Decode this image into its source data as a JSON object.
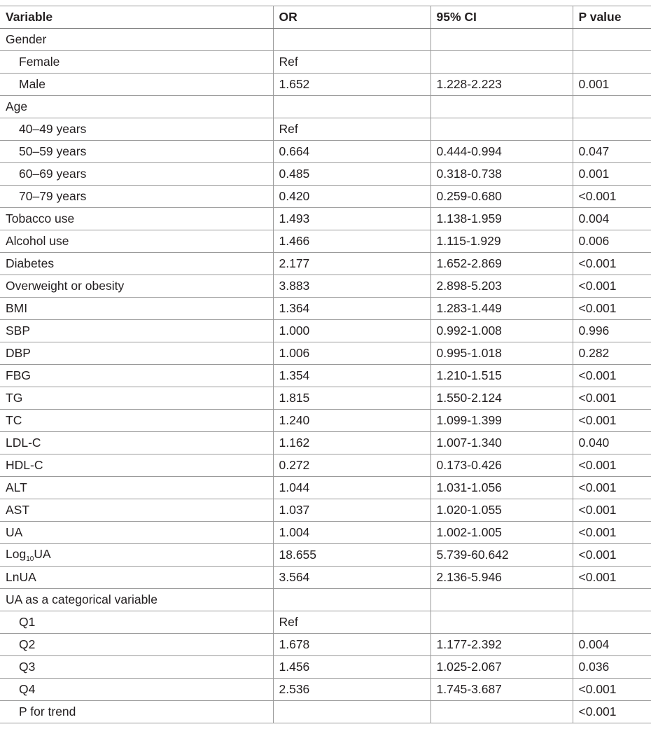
{
  "table": {
    "header": [
      "Variable",
      "OR",
      "95% CI",
      "P value"
    ],
    "rows": [
      {
        "level": 0,
        "cells": [
          "Gender",
          null,
          null,
          null
        ]
      },
      {
        "level": 1,
        "cells": [
          "Female",
          "Ref",
          null,
          null
        ]
      },
      {
        "level": 1,
        "cells": [
          "Male",
          "1.652",
          "1.228-2.223",
          "0.001"
        ]
      },
      {
        "level": 0,
        "cells": [
          "Age",
          null,
          null,
          null
        ]
      },
      {
        "level": 1,
        "cells": [
          "40–49 years",
          "Ref",
          null,
          null
        ]
      },
      {
        "level": 1,
        "cells": [
          "50–59 years",
          "0.664",
          "0.444-0.994",
          "0.047"
        ]
      },
      {
        "level": 1,
        "cells": [
          "60–69 years",
          "0.485",
          "0.318-0.738",
          "0.001"
        ]
      },
      {
        "level": 1,
        "cells": [
          "70–79 years",
          "0.420",
          "0.259-0.680",
          "<0.001"
        ]
      },
      {
        "level": 0,
        "cells": [
          "Tobacco use",
          "1.493",
          "1.138-1.959",
          "0.004"
        ]
      },
      {
        "level": 0,
        "cells": [
          "Alcohol use",
          "1.466",
          "1.115-1.929",
          "0.006"
        ]
      },
      {
        "level": 0,
        "cells": [
          "Diabetes",
          "2.177",
          "1.652-2.869",
          "<0.001"
        ]
      },
      {
        "level": 0,
        "cells": [
          "Overweight or obesity",
          "3.883",
          "2.898-5.203",
          "<0.001"
        ]
      },
      {
        "level": 0,
        "cells": [
          "BMI",
          "1.364",
          "1.283-1.449",
          "<0.001"
        ]
      },
      {
        "level": 0,
        "cells": [
          "SBP",
          "1.000",
          "0.992-1.008",
          "0.996"
        ]
      },
      {
        "level": 0,
        "cells": [
          "DBP",
          "1.006",
          "0.995-1.018",
          "0.282"
        ]
      },
      {
        "level": 0,
        "cells": [
          "FBG",
          "1.354",
          "1.210-1.515",
          "<0.001"
        ]
      },
      {
        "level": 0,
        "cells": [
          "TG",
          "1.815",
          "1.550-2.124",
          "<0.001"
        ]
      },
      {
        "level": 0,
        "cells": [
          "TC",
          "1.240",
          "1.099-1.399",
          "<0.001"
        ]
      },
      {
        "level": 0,
        "cells": [
          "LDL-C",
          "1.162",
          "1.007-1.340",
          "0.040"
        ]
      },
      {
        "level": 0,
        "cells": [
          "HDL-C",
          "0.272",
          "0.173-0.426",
          "<0.001"
        ]
      },
      {
        "level": 0,
        "cells": [
          "ALT",
          "1.044",
          "1.031-1.056",
          "<0.001"
        ]
      },
      {
        "level": 0,
        "cells": [
          "AST",
          "1.037",
          "1.020-1.055",
          "<0.001"
        ]
      },
      {
        "level": 0,
        "cells": [
          "UA",
          "1.004",
          "1.002-1.005",
          "<0.001"
        ]
      },
      {
        "level": 0,
        "cells": [
          [
            "Log",
            "10",
            "UA"
          ],
          "18.655",
          "5.739-60.642",
          "<0.001"
        ]
      },
      {
        "level": 0,
        "cells": [
          "LnUA",
          "3.564",
          "2.136-5.946",
          "<0.001"
        ]
      },
      {
        "level": 0,
        "cells": [
          "UA as a categorical variable",
          null,
          null,
          null
        ]
      },
      {
        "level": 1,
        "cells": [
          "Q1",
          "Ref",
          null,
          null
        ]
      },
      {
        "level": 1,
        "cells": [
          "Q2",
          "1.678",
          "1.177-2.392",
          "0.004"
        ]
      },
      {
        "level": 1,
        "cells": [
          "Q3",
          "1.456",
          "1.025-2.067",
          "0.036"
        ]
      },
      {
        "level": 1,
        "cells": [
          "Q4",
          "2.536",
          "1.745-3.687",
          "<0.001"
        ]
      },
      {
        "level": 1,
        "cells": [
          "P for trend",
          null,
          null,
          "<0.001"
        ]
      }
    ]
  }
}
